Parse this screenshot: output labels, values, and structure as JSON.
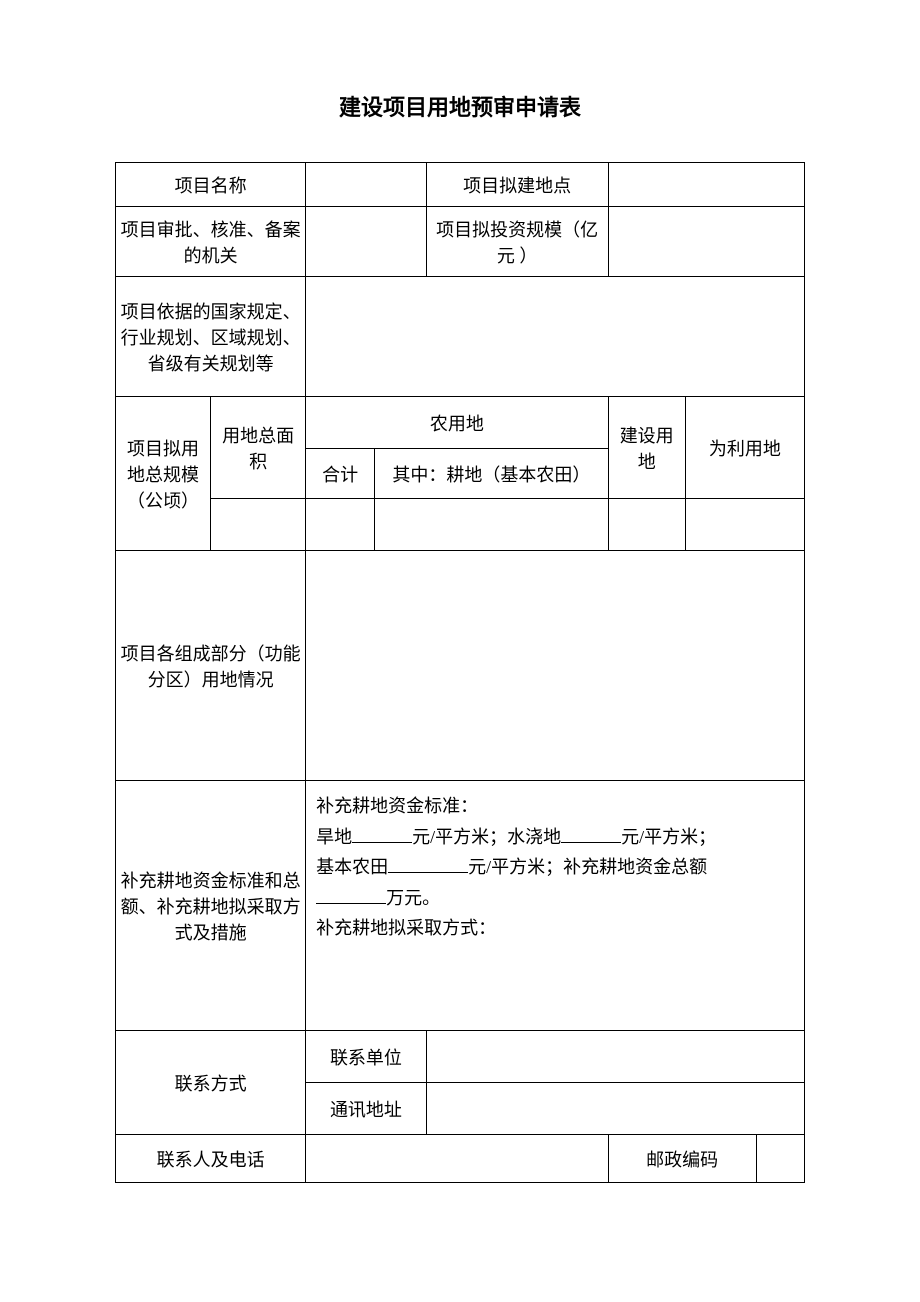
{
  "title": "建设项目用地预审申请表",
  "row1": {
    "projectNameLabel": "项目名称",
    "projectNameValue": "",
    "projectLocationLabel": "项目拟建地点",
    "projectLocationValue": ""
  },
  "row2": {
    "approvalOrgLabel": "项目审批、核准、备案的机关",
    "approvalOrgValue": "",
    "investScaleLabel": "项目拟投资规模（亿元 ）",
    "investScaleValue": ""
  },
  "row3": {
    "basisLabel": "项目依据的国家规定、行业规划、区域规划、省级有关规划等",
    "basisValue": ""
  },
  "landScale": {
    "totalLabel": "项目拟用地总规模（公顷）",
    "totalAreaLabel": "用地总面积",
    "agriLandLabel": "农用地",
    "subtotalLabel": "合计",
    "farmlandLabel": "其中：耕地（基本农田）",
    "constructionLandLabel": "建设用地",
    "unusedLandLabel": "为利用地",
    "values": {
      "totalArea": "",
      "subtotal": "",
      "farmland": "",
      "constructionLand": "",
      "unusedLand": ""
    }
  },
  "parts": {
    "label": "项目各组成部分（功能分区）用地情况",
    "value": ""
  },
  "supplement": {
    "label": "补充耕地资金标准和总额、补充耕地拟采取方式及措施",
    "line1Prefix": "补充耕地资金标准：",
    "line2a": "旱地",
    "line2b": "元/平方米；水浇地",
    "line2c": "元/平方米；",
    "line3a": "基本农田",
    "line3b": "元/平方米；补充耕地资金总额",
    "line4a": "万元。",
    "line5": "补充耕地拟采取方式：",
    "values": {
      "dryLand": "",
      "irrigatedLand": "",
      "basicFarmland": "",
      "totalAmount": ""
    }
  },
  "contact": {
    "contactLabel": "联系方式",
    "unitLabel": "联系单位",
    "unitValue": "",
    "addressLabel": "通讯地址",
    "addressValue": "",
    "personPhoneLabel": "联系人及电话",
    "personPhoneValue": "",
    "postalLabel": "邮政编码",
    "postalValue": ""
  },
  "colors": {
    "border": "#000000",
    "background": "#ffffff",
    "text": "#000000"
  },
  "fonts": {
    "titleSize": 22,
    "bodySize": 18,
    "family": "SimSun"
  }
}
